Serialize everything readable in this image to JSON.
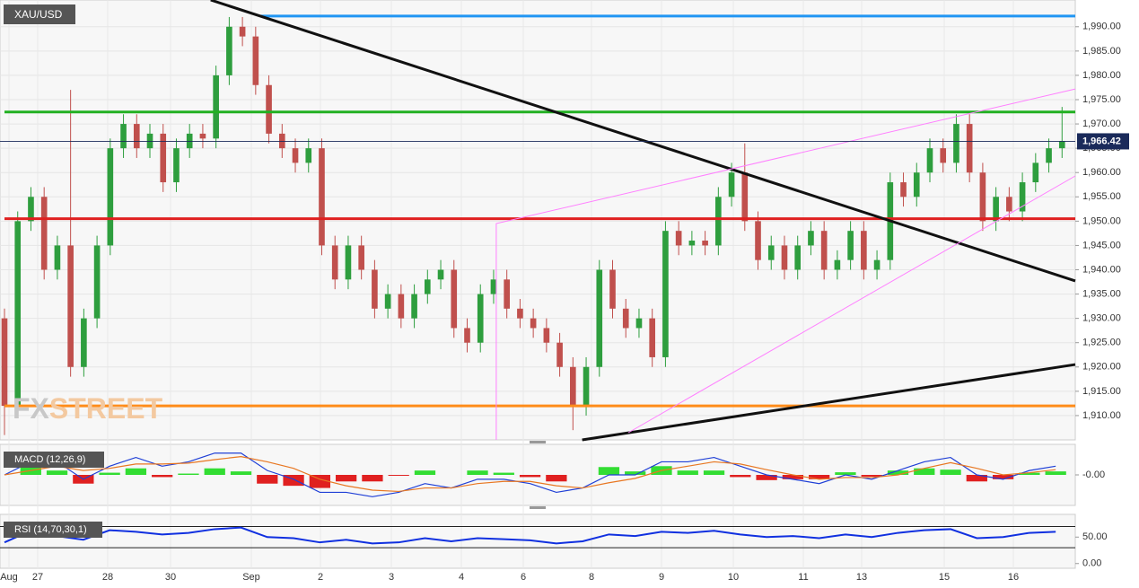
{
  "symbol": "XAU/USD",
  "watermark": [
    "FX",
    "STREET"
  ],
  "dates": [
    "Aug",
    "27",
    "28",
    "30",
    "Sep",
    "2",
    "3",
    "4",
    "6",
    "8",
    "9",
    "10",
    "11",
    "13",
    "15",
    "16"
  ],
  "chart_data": [
    {
      "type": "candlestick",
      "xlim": [
        0,
        81
      ],
      "ylim": [
        1905,
        1995.5
      ],
      "yticks": [
        {
          "value": 1910,
          "label": "1,910.00"
        },
        {
          "value": 1915,
          "label": "1,915.00"
        },
        {
          "value": 1920,
          "label": "1,920.00"
        },
        {
          "value": 1925,
          "label": "1,925.00"
        },
        {
          "value": 1930,
          "label": "1,930.00"
        },
        {
          "value": 1935,
          "label": "1,935.00"
        },
        {
          "value": 1940,
          "label": "1,940.00"
        },
        {
          "value": 1945,
          "label": "1,945.00"
        },
        {
          "value": 1950,
          "label": "1,950.00"
        },
        {
          "value": 1955,
          "label": "1,955.00"
        },
        {
          "value": 1960,
          "label": "1,960.00"
        },
        {
          "value": 1965,
          "label": "1,965.00"
        },
        {
          "value": 1970,
          "label": "1,970.00"
        },
        {
          "value": 1975,
          "label": "1,975.00"
        },
        {
          "value": 1980,
          "label": "1,980.00"
        },
        {
          "value": 1985,
          "label": "1,985.00"
        },
        {
          "value": 1990,
          "label": "1,990.00"
        }
      ],
      "up_color": "#2e9e3e",
      "down_color": "#c0504d",
      "grid": true,
      "open": [
        1930,
        1912,
        1950,
        1955,
        1940,
        1945,
        1920,
        1930,
        1945,
        1965,
        1970,
        1965,
        1968,
        1958,
        1965,
        1968,
        1967,
        1980,
        1990,
        1988,
        1978,
        1968,
        1965,
        1962,
        1965,
        1945,
        1938,
        1945,
        1940,
        1932,
        1935,
        1930,
        1935,
        1938,
        1940,
        1928,
        1925,
        1935,
        1938,
        1932,
        1930,
        1928,
        1925,
        1920,
        1912,
        1920,
        1940,
        1932,
        1928,
        1930,
        1922,
        1948,
        1945,
        1946,
        1945,
        1955,
        1960,
        1950,
        1942,
        1945,
        1940,
        1945,
        1948,
        1940,
        1942,
        1948,
        1940,
        1942,
        1958,
        1955,
        1960,
        1965,
        1962,
        1970,
        1960,
        1950,
        1955,
        1952,
        1958,
        1962,
        1965
      ],
      "high": [
        1932,
        1952,
        1957,
        1957,
        1947,
        1977,
        1932,
        1947,
        1967,
        1972,
        1972,
        1970,
        1970,
        1967,
        1970,
        1970,
        1982,
        1992,
        1992,
        1990,
        1980,
        1970,
        1967,
        1967,
        1967,
        1947,
        1947,
        1947,
        1942,
        1937,
        1937,
        1937,
        1940,
        1942,
        1942,
        1930,
        1937,
        1940,
        1940,
        1934,
        1932,
        1930,
        1927,
        1922,
        1922,
        1942,
        1942,
        1934,
        1932,
        1932,
        1950,
        1950,
        1948,
        1948,
        1957,
        1962,
        1966,
        1952,
        1947,
        1947,
        1947,
        1950,
        1950,
        1944,
        1950,
        1950,
        1944,
        1960,
        1960,
        1962,
        1967,
        1967,
        1972,
        1972,
        1962,
        1957,
        1957,
        1960,
        1964,
        1967,
        1973.5
      ],
      "low": [
        1906,
        1910,
        1948,
        1938,
        1938,
        1918,
        1918,
        1928,
        1943,
        1963,
        1963,
        1963,
        1956,
        1956,
        1963,
        1965,
        1965,
        1978,
        1986,
        1976,
        1966,
        1963,
        1960,
        1960,
        1943,
        1936,
        1936,
        1938,
        1930,
        1930,
        1928,
        1928,
        1933,
        1936,
        1926,
        1923,
        1923,
        1933,
        1930,
        1928,
        1926,
        1923,
        1918,
        1907,
        1910,
        1918,
        1930,
        1926,
        1926,
        1920,
        1920,
        1943,
        1943,
        1943,
        1943,
        1953,
        1948,
        1940,
        1940,
        1938,
        1938,
        1943,
        1938,
        1938,
        1940,
        1938,
        1938,
        1940,
        1953,
        1953,
        1958,
        1960,
        1960,
        1958,
        1948,
        1948,
        1950,
        1950,
        1956,
        1960,
        1963
      ],
      "close": [
        1912,
        1950,
        1955,
        1940,
        1945,
        1920,
        1930,
        1945,
        1965,
        1970,
        1965,
        1968,
        1958,
        1965,
        1968,
        1967,
        1980,
        1990,
        1988,
        1978,
        1968,
        1965,
        1962,
        1965,
        1945,
        1938,
        1945,
        1940,
        1932,
        1935,
        1930,
        1935,
        1938,
        1940,
        1928,
        1925,
        1935,
        1938,
        1932,
        1930,
        1928,
        1925,
        1920,
        1912,
        1920,
        1940,
        1932,
        1928,
        1930,
        1922,
        1948,
        1945,
        1946,
        1945,
        1955,
        1960,
        1950,
        1942,
        1945,
        1940,
        1945,
        1948,
        1940,
        1942,
        1948,
        1940,
        1942,
        1958,
        1955,
        1960,
        1965,
        1962,
        1970,
        1960,
        1950,
        1955,
        1952,
        1958,
        1962,
        1965,
        1966.42
      ],
      "levels": [
        {
          "value": 1992.2,
          "color": "#2196f3",
          "x_start": 19.4
        },
        {
          "value": 1972.45,
          "color": "#22b022",
          "x_start": 0
        },
        {
          "value": 1950.5,
          "color": "#e02020",
          "x_start": 0
        },
        {
          "value": 1912,
          "color": "#ff8c1a",
          "x_start": 0
        }
      ],
      "trendlines": [
        {
          "x": [
            15.6,
            81
          ],
          "y": [
            1995.5,
            1937.7
          ],
          "color": "#111111",
          "width": 3
        },
        {
          "x": [
            43.7,
            81
          ],
          "y": [
            1905,
            1920.5
          ],
          "color": "#111111",
          "width": 3
        },
        {
          "x": [
            37.2,
            37.2,
            81
          ],
          "y": [
            1905,
            1949.5,
            1977.2
          ],
          "color": "#ff80ff",
          "width": 1
        },
        {
          "x": [
            47.2,
            81
          ],
          "y": [
            1906.5,
            1959.3
          ],
          "color": "#ff80ff",
          "width": 1
        }
      ],
      "last_price": {
        "value": 1966.42,
        "label": "1,966.42"
      }
    },
    {
      "type": "macd",
      "title": "MACD (12,26,9)",
      "xlim": [
        0,
        81
      ],
      "ylim": [
        -7,
        7
      ],
      "yticks": [
        {
          "value": 0,
          "label": "-0.00"
        }
      ],
      "series": [
        {
          "kind": "histogram",
          "color": "#33dd33",
          "neg_color": "#e02020",
          "values": [
            0,
            2,
            1,
            -2,
            0.5,
            1.5,
            -0.5,
            0.3,
            1.5,
            0.8,
            -2,
            -2.5,
            -3,
            -1.5,
            -1.5,
            -0.2,
            1,
            0,
            1,
            0.5,
            -0.5,
            -1.5,
            0,
            1.8,
            0.8,
            2,
            1,
            1,
            -0.5,
            -1.2,
            -1,
            -1,
            0.6,
            -0.4,
            1,
            1.5,
            1.2,
            -1.5,
            -1,
            0.5,
            0.8
          ]
        },
        {
          "kind": "line",
          "color": "#1f3fd6",
          "values": [
            0,
            3,
            3,
            -1,
            2,
            4,
            2,
            3,
            5,
            5,
            1,
            -1,
            -4,
            -4,
            -5,
            -4,
            -2,
            -3,
            -1,
            -1,
            -2,
            -4,
            -3,
            0,
            0,
            3,
            3,
            4,
            2,
            0,
            -1,
            -2,
            0,
            -1,
            1,
            3,
            4,
            0,
            -1,
            1,
            2
          ]
        },
        {
          "kind": "line",
          "color": "#e87722",
          "values": [
            0,
            1,
            2,
            1,
            1.5,
            2.5,
            2.5,
            2.7,
            3.5,
            4.2,
            3,
            1.5,
            -1,
            -2.5,
            -3.5,
            -3.8,
            -3,
            -3,
            -2,
            -1.5,
            -1.5,
            -2.5,
            -3,
            -1.8,
            -0.8,
            1,
            2,
            3,
            2.5,
            1.2,
            0,
            -1,
            -0.6,
            -0.6,
            0,
            1.5,
            2.8,
            1.5,
            0,
            0.5,
            1.2
          ]
        }
      ]
    },
    {
      "type": "rsi",
      "title": "RSI (14,70,30,1)",
      "xlim": [
        0,
        81
      ],
      "ylim": [
        -8.9,
        92.9
      ],
      "yticks": [
        {
          "value": 0,
          "label": "0.00"
        },
        {
          "value": 50,
          "label": "50.00"
        }
      ],
      "bands": [
        70,
        30
      ],
      "series": [
        {
          "kind": "line",
          "color": "#1030e0",
          "values": [
            40,
            62,
            52,
            45,
            63,
            60,
            55,
            58,
            65,
            68,
            50,
            48,
            40,
            45,
            38,
            40,
            48,
            42,
            48,
            46,
            44,
            38,
            42,
            55,
            52,
            60,
            58,
            62,
            55,
            50,
            52,
            48,
            55,
            50,
            58,
            63,
            65,
            48,
            50,
            58,
            60
          ]
        }
      ]
    }
  ]
}
